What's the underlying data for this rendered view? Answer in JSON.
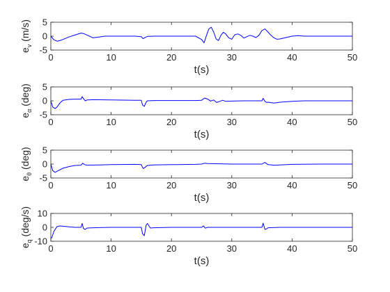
{
  "chart_data": [
    {
      "type": "line",
      "ylabel_main": "e",
      "ylabel_sub": "v",
      "ylabel_unit": " (m/s)",
      "xlabel": "t(s)",
      "xlim": [
        0,
        50
      ],
      "ylim": [
        -5,
        5
      ],
      "xticks": [
        0,
        10,
        20,
        30,
        40,
        50
      ],
      "yticks": [
        -5,
        0,
        5
      ],
      "series": [
        {
          "color": "#0000ff",
          "x": [
            0,
            0.5,
            1,
            1.5,
            2,
            3,
            4,
            5,
            5.5,
            6,
            7,
            8,
            9,
            10,
            12,
            14,
            15,
            15.3,
            15.7,
            16,
            17,
            18,
            20,
            22,
            24,
            25,
            25.4,
            25.8,
            26.2,
            26.6,
            27,
            27.4,
            27.8,
            28.2,
            28.6,
            29,
            29.5,
            30,
            30.5,
            31,
            31.5,
            32,
            32.5,
            33,
            33.5,
            34,
            34.5,
            35,
            35.5,
            36,
            36.5,
            37,
            37.5,
            38,
            39,
            40,
            41,
            42,
            45,
            48,
            50
          ],
          "y": [
            0,
            -1.3,
            -1.8,
            -1.6,
            -1.2,
            -0.3,
            0.4,
            1.1,
            0.9,
            0.4,
            -0.6,
            -0.3,
            0,
            0,
            0,
            0,
            -0.2,
            -0.9,
            -0.4,
            -0.1,
            0,
            0,
            0,
            0,
            0,
            -1.2,
            -2.4,
            0.2,
            2.6,
            3.2,
            1.5,
            -1.0,
            -1.6,
            0.3,
            1.4,
            0.8,
            -0.6,
            -1.1,
            0.5,
            0.8,
            0.3,
            -0.7,
            -0.2,
            0.3,
            0,
            -0.5,
            0.3,
            2.0,
            2.6,
            1.5,
            0.3,
            -0.6,
            -1.1,
            -1.0,
            -0.5,
            0,
            0.2,
            0,
            0,
            0,
            0
          ]
        }
      ]
    },
    {
      "type": "line",
      "ylabel_main": "e",
      "ylabel_sub": "α",
      "ylabel_unit": " (deg)",
      "xlabel": "t(s)",
      "xlim": [
        0,
        50
      ],
      "ylim": [
        -5,
        5
      ],
      "xticks": [
        0,
        10,
        20,
        30,
        40,
        50
      ],
      "yticks": [
        -5,
        0,
        5
      ],
      "series": [
        {
          "color": "#0000ff",
          "x": [
            0,
            0.3,
            0.7,
            1,
            1.5,
            2,
            3,
            4,
            5,
            5.2,
            5.4,
            5.7,
            6,
            7,
            10,
            14,
            15,
            15.2,
            15.5,
            15.8,
            16,
            17,
            20,
            24,
            25,
            25.5,
            26,
            26.5,
            27,
            27.5,
            28,
            28.5,
            29,
            30,
            32,
            34,
            35,
            35.2,
            35.5,
            35.8,
            36,
            37,
            38,
            40,
            42,
            45,
            50
          ],
          "y": [
            0,
            -2.2,
            -2.8,
            -2.3,
            -0.8,
            0.2,
            0.5,
            0.6,
            0.6,
            1.5,
            0.8,
            0,
            0.3,
            0.4,
            0.3,
            0.2,
            0.2,
            -1.5,
            -2.0,
            -0.5,
            0,
            0.1,
            0.1,
            0.1,
            0.2,
            1.0,
            0.6,
            -0.1,
            0.3,
            -0.6,
            -0.2,
            0.2,
            -0.2,
            -0.1,
            0,
            0,
            0,
            0.9,
            -0.2,
            -0.6,
            -0.5,
            -0.8,
            -0.5,
            -0.2,
            0,
            0,
            0
          ]
        }
      ]
    },
    {
      "type": "line",
      "ylabel_main": "e",
      "ylabel_sub": "θ",
      "ylabel_unit": " (deg)",
      "xlabel": "t(s)",
      "xlim": [
        0,
        50
      ],
      "ylim": [
        -5,
        5
      ],
      "xticks": [
        0,
        10,
        20,
        30,
        40,
        50
      ],
      "yticks": [
        -5,
        0,
        5
      ],
      "series": [
        {
          "color": "#0000ff",
          "x": [
            0,
            0.3,
            0.7,
            1,
            2,
            3,
            4,
            5,
            5.3,
            5.6,
            6,
            8,
            10,
            14,
            15,
            15.3,
            15.6,
            16,
            17,
            20,
            24,
            25,
            25.5,
            26,
            28,
            30,
            32,
            34,
            35,
            35.5,
            36,
            37,
            38,
            40,
            45,
            50
          ],
          "y": [
            0,
            -2.3,
            -3.0,
            -2.6,
            -1.5,
            -0.9,
            -0.5,
            -0.4,
            0.3,
            -0.2,
            -0.4,
            -0.3,
            -0.2,
            -0.1,
            -0.2,
            -1.6,
            -1.2,
            -0.5,
            -0.3,
            -0.2,
            -0.1,
            0,
            0.3,
            0.2,
            0.1,
            0,
            0,
            0,
            0,
            0.6,
            -0.2,
            -0.4,
            -0.3,
            -0.1,
            0,
            0
          ]
        }
      ]
    },
    {
      "type": "line",
      "ylabel_main": "e",
      "ylabel_sub": "q",
      "ylabel_unit": " (deg/s)",
      "xlabel": "t(s)",
      "xlim": [
        0,
        50
      ],
      "ylim": [
        -10,
        10
      ],
      "xticks": [
        0,
        10,
        20,
        30,
        40,
        50
      ],
      "yticks": [
        -10,
        0,
        10
      ],
      "series": [
        {
          "color": "#0000ff",
          "x": [
            0,
            0.2,
            0.5,
            1,
            1.5,
            2,
            3,
            4,
            5,
            5.2,
            5.4,
            5.7,
            6,
            8,
            10,
            14,
            15,
            15.2,
            15.5,
            15.8,
            16,
            16.5,
            17,
            20,
            24,
            25,
            25.3,
            25.6,
            26,
            30,
            34,
            35,
            35.2,
            35.5,
            35.8,
            36,
            38,
            40,
            45,
            50
          ],
          "y": [
            -8,
            -7,
            -3,
            0.5,
            1.0,
            0.8,
            0.4,
            0,
            0,
            2.8,
            -0.8,
            -1.5,
            -0.5,
            -0.2,
            0,
            0,
            0,
            -4.5,
            -6,
            1.5,
            2.8,
            -0.5,
            -0.3,
            0,
            0,
            0,
            1.0,
            -0.6,
            0,
            0,
            0,
            0,
            3.0,
            -1.5,
            -1.0,
            -0.3,
            0,
            0,
            0,
            0
          ]
        }
      ]
    }
  ]
}
